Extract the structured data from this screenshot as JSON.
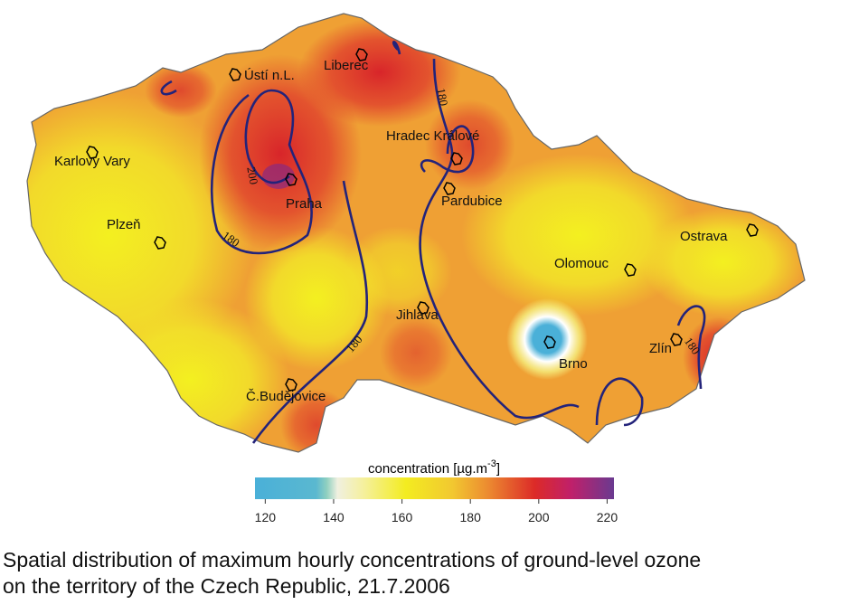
{
  "cities": [
    {
      "name": "Ústí n.L."
    },
    {
      "name": "Liberec"
    },
    {
      "name": "Hradec Králové"
    },
    {
      "name": "Karlovy Vary"
    },
    {
      "name": "Praha"
    },
    {
      "name": "Pardubice"
    },
    {
      "name": "Plzeň"
    },
    {
      "name": "Ostrava"
    },
    {
      "name": "Olomouc"
    },
    {
      "name": "Jihlava"
    },
    {
      "name": "Brno"
    },
    {
      "name": "Zlín"
    },
    {
      "name": "Č.Budějovice"
    }
  ],
  "contours": [
    {
      "value": 200
    },
    {
      "value": 180
    },
    {
      "value": 180
    },
    {
      "value": 180
    },
    {
      "value": 180
    }
  ],
  "legend": {
    "title": "concentration [µg.m",
    "superscript": "-3",
    "suffix": "]",
    "range": [
      117,
      222
    ],
    "ticks": [
      120,
      140,
      160,
      180,
      200,
      220
    ]
  },
  "caption": [
    "Spatial distribution of maximum hourly concentrations of ground-level ozone",
    "on the territory of the Czech Republic, 21.7.2006"
  ]
}
